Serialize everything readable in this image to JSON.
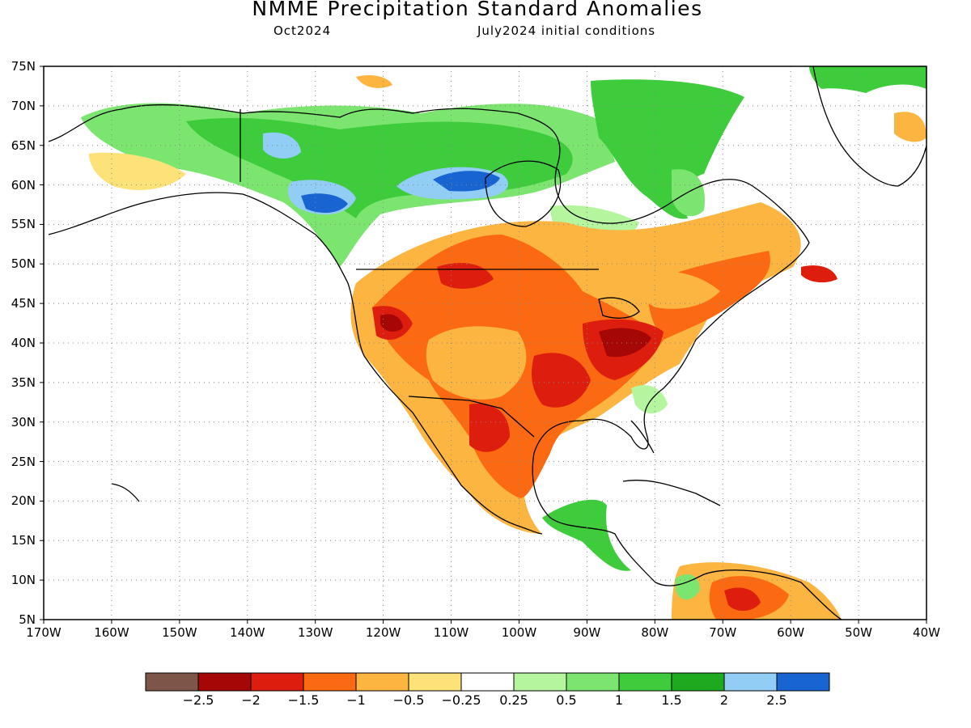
{
  "title": "NMME Precipitation Standard Anomalies",
  "subtitle_left": "Oct2024",
  "subtitle_right": "July2024 initial conditions",
  "lat_labels": [
    "75N",
    "70N",
    "65N",
    "60N",
    "55N",
    "50N",
    "45N",
    "40N",
    "35N",
    "30N",
    "25N",
    "20N",
    "15N",
    "10N",
    "5N"
  ],
  "lon_labels": [
    "170W",
    "160W",
    "150W",
    "140W",
    "130W",
    "120W",
    "110W",
    "100W",
    "90W",
    "80W",
    "70W",
    "60W",
    "50W",
    "40W"
  ],
  "colorbar": {
    "colors": [
      "#7d5649",
      "#a50707",
      "#dd1e0e",
      "#fb6a12",
      "#fbb540",
      "#fde27a",
      "#ffffff",
      "#b5f59e",
      "#7be56f",
      "#3ecc3c",
      "#1daa1e",
      "#92cdf5",
      "#1865d2"
    ],
    "labels": [
      "−2.5",
      "−2",
      "−1.5",
      "−1",
      "−0.5",
      "−0.25",
      "0.25",
      "0.5",
      "1",
      "1.5",
      "2",
      "2.5"
    ]
  },
  "map": {
    "lon_range": [
      -170,
      -40
    ],
    "lat_range": [
      5,
      75
    ],
    "regions": [
      {
        "name": "alaska-north-green",
        "color": "#7be56f"
      },
      {
        "name": "canada-north-green",
        "color": "#3ecc3c"
      },
      {
        "name": "canada-blue-patch",
        "color": "#1865d2"
      },
      {
        "name": "canada-lightblue-patch",
        "color": "#92cdf5"
      },
      {
        "name": "greenland-green",
        "color": "#3ecc3c"
      },
      {
        "name": "us-dry-orange",
        "color": "#fb6a12"
      },
      {
        "name": "us-dry-light",
        "color": "#fbb540"
      },
      {
        "name": "ohio-valley-darkred",
        "color": "#a50707"
      },
      {
        "name": "central-america-green",
        "color": "#3ecc3c"
      },
      {
        "name": "venezuela-orange",
        "color": "#fb6a12"
      }
    ]
  }
}
